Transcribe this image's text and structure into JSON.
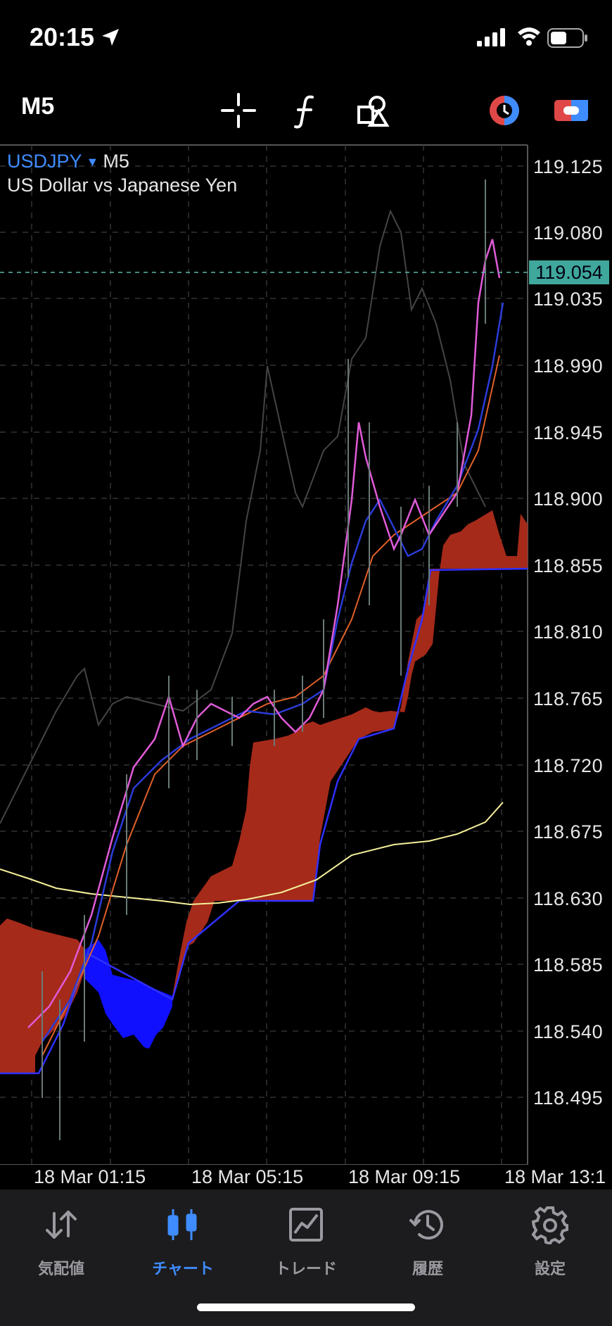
{
  "status": {
    "time": "20:15"
  },
  "toolbar": {
    "timeframe": "M5",
    "icons": [
      "crosshair-icon",
      "function-icon",
      "objects-icon",
      "trade-sentiment-icon",
      "account-icon"
    ]
  },
  "symbol": {
    "name": "USDJPY",
    "timeframe": "M5",
    "description": "US Dollar vs Japanese Yen",
    "arrow": "▼"
  },
  "price_axis": [
    "119.125",
    "119.080",
    "119.035",
    "118.990",
    "118.945",
    "118.900",
    "118.855",
    "118.810",
    "118.765",
    "118.720",
    "118.675",
    "118.630",
    "118.585",
    "118.540",
    "118.495"
  ],
  "current_price": "119.054",
  "time_axis": [
    "18 Mar 01:15",
    "18 Mar 05:15",
    "18 Mar 09:15",
    "18 Mar 13:1"
  ],
  "tabs": [
    {
      "label": "気配値",
      "icon": "quotes-icon",
      "active": false
    },
    {
      "label": "チャート",
      "icon": "chart-icon",
      "active": true
    },
    {
      "label": "トレード",
      "icon": "trade-icon",
      "active": false
    },
    {
      "label": "履歴",
      "icon": "history-icon",
      "active": false
    },
    {
      "label": "設定",
      "icon": "settings-icon",
      "active": false
    }
  ],
  "colors": {
    "accent": "#3f8cff",
    "kumo_bear": "#a52a1a",
    "kumo_bull": "#1010ff",
    "current_price_bg": "#3fa79b",
    "ma_long": "#f4f09a"
  }
}
